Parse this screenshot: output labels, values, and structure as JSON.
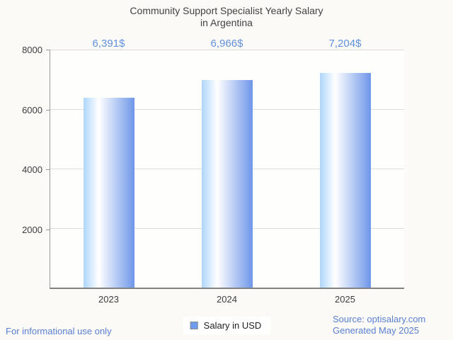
{
  "title": {
    "line1": "Community Support Specialist Yearly Salary",
    "line2": "in Argentina"
  },
  "chart_data": {
    "type": "bar",
    "title": "Community Support Specialist Yearly Salary in Argentina",
    "categories": [
      "2023",
      "2024",
      "2025"
    ],
    "series": [
      {
        "name": "Salary in USD",
        "values": [
          6391,
          6966,
          7204
        ]
      }
    ],
    "value_labels": [
      "6,391$",
      "6,966$",
      "7,204$"
    ],
    "xlabel": "",
    "ylabel": "",
    "ylim": [
      0,
      8000
    ],
    "yticks": [
      2000,
      4000,
      6000,
      8000
    ],
    "grid": true,
    "legend_position": "bottom",
    "bar_gradient": [
      "#aed6fb",
      "#ffffff",
      "#6e97e9"
    ]
  },
  "legend": {
    "marker_color": "#6d9eeb",
    "label": "Salary in USD"
  },
  "footer": {
    "left": "For informational use only",
    "source_line1": "Source: optisalary.com",
    "source_line2": "Generated May 2025"
  },
  "colors": {
    "page_bg": "#fbfaf7",
    "plot_bg": "#fefefd",
    "title_text": "#424242",
    "axis_text": "#3d3d3d",
    "value_label_text": "#6190de",
    "footer_text": "#5b80d1",
    "gridline": "#dddddd",
    "axis_line": "#8a8a8a",
    "legend_text": "#1f1f1f"
  }
}
